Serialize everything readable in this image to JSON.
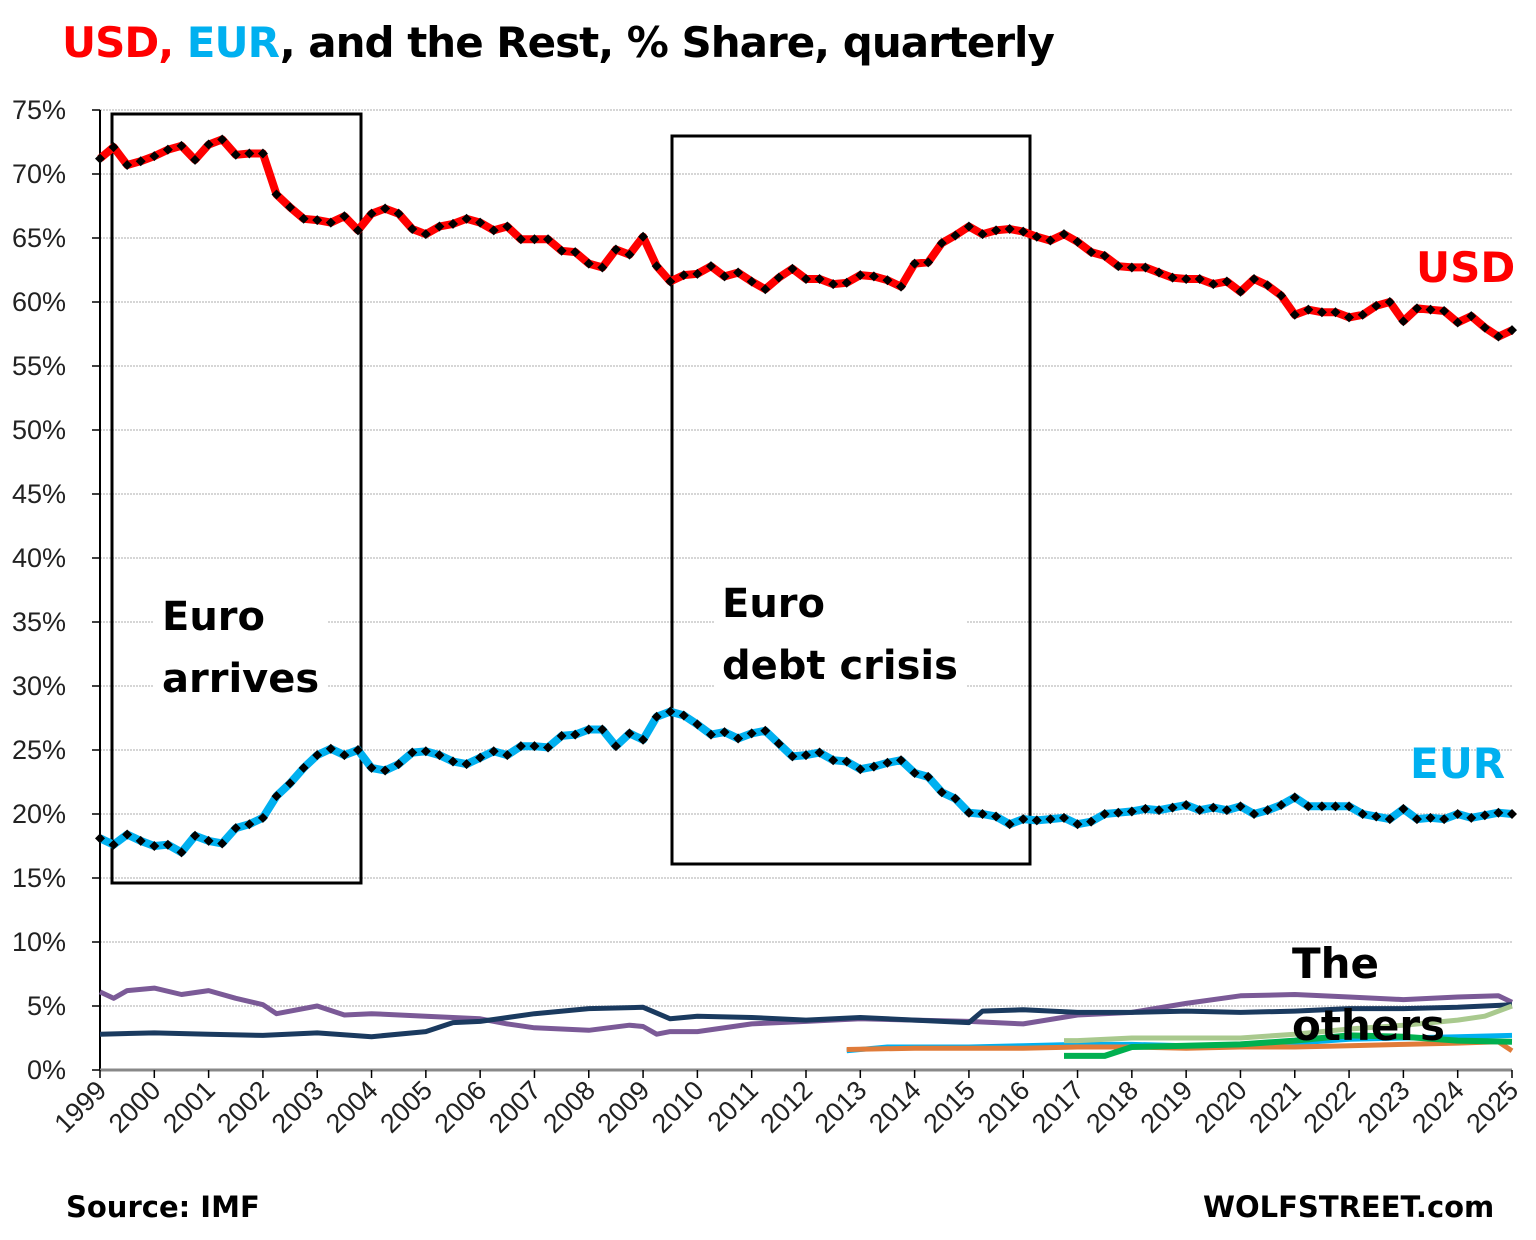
{
  "title": {
    "part_usd": "USD",
    "sep1": ", ",
    "part_eur": "EUR",
    "rest": ", and the Rest, % Share, quarterly"
  },
  "colors": {
    "usd": "#ff0000",
    "eur": "#00b0f0",
    "markers": "#000000",
    "grid": "#c8c8c8"
  },
  "chart_data": {
    "type": "line",
    "title": "USD, EUR, and the Rest, % Share, quarterly",
    "ylabel": "",
    "xlabel": "",
    "ylim": [
      0,
      75
    ],
    "xlim": [
      1999,
      2025
    ],
    "yticks": [
      "0%",
      "5%",
      "10%",
      "15%",
      "20%",
      "25%",
      "30%",
      "35%",
      "40%",
      "45%",
      "50%",
      "55%",
      "60%",
      "65%",
      "70%",
      "75%"
    ],
    "xticks": [
      "1999",
      "2000",
      "2001",
      "2002",
      "2003",
      "2004",
      "2005",
      "2006",
      "2007",
      "2008",
      "2009",
      "2010",
      "2011",
      "2012",
      "2013",
      "2014",
      "2015",
      "2016",
      "2017",
      "2018",
      "2019",
      "2020",
      "2021",
      "2022",
      "2023",
      "2024",
      "2025"
    ],
    "grid": true,
    "series": [
      {
        "name": "USD",
        "color": "#ff0000",
        "start": "1999Q1",
        "frequency": "quarterly",
        "values": [
          71.2,
          72.1,
          70.7,
          71.0,
          71.4,
          71.9,
          72.2,
          71.1,
          72.3,
          72.7,
          71.5,
          71.6,
          71.6,
          68.4,
          67.4,
          66.5,
          66.4,
          66.2,
          66.7,
          65.6,
          66.9,
          67.3,
          66.9,
          65.7,
          65.3,
          65.9,
          66.1,
          66.5,
          66.2,
          65.6,
          65.9,
          64.9,
          64.9,
          64.9,
          64.0,
          63.9,
          63.0,
          62.7,
          64.1,
          63.7,
          65.1,
          62.8,
          61.6,
          62.1,
          62.2,
          62.8,
          62.0,
          62.3,
          61.6,
          61.0,
          61.9,
          62.6,
          61.8,
          61.8,
          61.4,
          61.5,
          62.1,
          62.0,
          61.7,
          61.2,
          63.0,
          63.1,
          64.6,
          65.2,
          65.9,
          65.3,
          65.6,
          65.7,
          65.5,
          65.1,
          64.8,
          65.3,
          64.7,
          63.9,
          63.6,
          62.8,
          62.7,
          62.7,
          62.3,
          61.9,
          61.8,
          61.8,
          61.4,
          61.6,
          60.8,
          61.8,
          61.3,
          60.5,
          59.0,
          59.4,
          59.2,
          59.2,
          58.8,
          59.0,
          59.7,
          60.0,
          58.5,
          59.5,
          59.4,
          59.3,
          58.4,
          58.9,
          58.0,
          57.3,
          57.8
        ]
      },
      {
        "name": "EUR",
        "color": "#00b0f0",
        "start": "1999Q1",
        "frequency": "quarterly",
        "values": [
          18.1,
          17.6,
          18.4,
          17.9,
          17.5,
          17.6,
          17.0,
          18.3,
          17.9,
          17.7,
          18.9,
          19.2,
          19.7,
          21.4,
          22.4,
          23.6,
          24.6,
          25.1,
          24.6,
          25.0,
          23.6,
          23.4,
          23.9,
          24.8,
          24.9,
          24.6,
          24.1,
          23.9,
          24.4,
          24.9,
          24.6,
          25.3,
          25.3,
          25.2,
          26.1,
          26.2,
          26.6,
          26.6,
          25.3,
          26.3,
          25.8,
          27.6,
          28.0,
          27.7,
          27.0,
          26.2,
          26.4,
          25.9,
          26.3,
          26.5,
          25.5,
          24.5,
          24.6,
          24.8,
          24.2,
          24.1,
          23.5,
          23.7,
          24.0,
          24.2,
          23.2,
          22.9,
          21.7,
          21.2,
          20.1,
          20.0,
          19.8,
          19.2,
          19.6,
          19.5,
          19.6,
          19.7,
          19.2,
          19.4,
          20.0,
          20.1,
          20.2,
          20.4,
          20.3,
          20.5,
          20.7,
          20.3,
          20.5,
          20.3,
          20.6,
          20.0,
          20.3,
          20.7,
          21.3,
          20.6,
          20.6,
          20.6,
          20.6,
          20.0,
          19.8,
          19.6,
          20.4,
          19.6,
          19.7,
          19.6,
          20.0,
          19.7,
          19.9,
          20.1,
          20.0
        ]
      },
      {
        "color": "#7b5a97",
        "x": [
          1999,
          1999.25,
          1999.5,
          2000,
          2000.5,
          2001,
          2001.5,
          2002,
          2002.25,
          2003,
          2003.5,
          2004,
          2005,
          2006,
          2006.5,
          2007,
          2008,
          2008.75,
          2009,
          2009.25,
          2009.5,
          2010,
          2011,
          2012,
          2013,
          2014,
          2015,
          2016,
          2017,
          2018,
          2019,
          2020,
          2021,
          2022,
          2023,
          2024,
          2024.75,
          2025
        ],
        "values": [
          6.1,
          5.6,
          6.2,
          6.4,
          5.9,
          6.2,
          5.6,
          5.1,
          4.4,
          5.0,
          4.3,
          4.4,
          4.2,
          4.0,
          3.6,
          3.3,
          3.1,
          3.5,
          3.4,
          2.8,
          3.0,
          3.0,
          3.6,
          3.8,
          4.0,
          3.9,
          3.8,
          3.6,
          4.3,
          4.5,
          5.2,
          5.8,
          5.9,
          5.7,
          5.5,
          5.7,
          5.8,
          5.3
        ]
      },
      {
        "color": "#1a3a5f",
        "x": [
          1999,
          2000,
          2001,
          2002,
          2003,
          2004,
          2005,
          2005.5,
          2006,
          2007,
          2008,
          2009,
          2009.5,
          2009.75,
          2010,
          2011,
          2012,
          2013,
          2014,
          2015,
          2015.25,
          2016,
          2017,
          2018,
          2019,
          2020,
          2021,
          2022,
          2023,
          2024,
          2025
        ],
        "values": [
          2.8,
          2.9,
          2.8,
          2.7,
          2.9,
          2.6,
          3.0,
          3.7,
          3.8,
          4.4,
          4.8,
          4.9,
          4.0,
          4.1,
          4.2,
          4.1,
          3.9,
          4.1,
          3.9,
          3.7,
          4.6,
          4.7,
          4.5,
          4.5,
          4.6,
          4.5,
          4.6,
          4.8,
          4.8,
          4.9,
          5.1
        ]
      },
      {
        "color": "#00b0f0",
        "x": [
          2012.75,
          2013.5,
          2014,
          2015,
          2016,
          2017,
          2018,
          2019,
          2020,
          2021,
          2022,
          2023,
          2024,
          2025
        ],
        "values": [
          1.5,
          1.8,
          1.8,
          1.8,
          1.9,
          2.0,
          2.0,
          1.9,
          1.9,
          2.1,
          2.4,
          2.5,
          2.6,
          2.7
        ]
      },
      {
        "color": "#e07b39",
        "x": [
          2012.75,
          2014,
          2015,
          2016,
          2017,
          2018,
          2019,
          2020,
          2021,
          2022,
          2023,
          2024,
          2024.75,
          2025
        ],
        "values": [
          1.6,
          1.7,
          1.7,
          1.7,
          1.8,
          1.8,
          1.7,
          1.8,
          1.8,
          1.9,
          2.0,
          2.1,
          2.2,
          1.5
        ]
      },
      {
        "color": "#a9c98e",
        "x": [
          2016.75,
          2017,
          2018,
          2019,
          2020,
          2021,
          2022,
          2023,
          2024,
          2024.5,
          2025
        ],
        "values": [
          2.3,
          2.3,
          2.5,
          2.5,
          2.5,
          2.8,
          3.2,
          3.5,
          3.9,
          4.2,
          5.0
        ]
      },
      {
        "color": "#00b050",
        "x": [
          2016.75,
          2017.5,
          2018,
          2019,
          2020,
          2021,
          2022,
          2023,
          2024,
          2025
        ],
        "values": [
          1.1,
          1.1,
          1.8,
          1.9,
          2.0,
          2.3,
          2.7,
          2.6,
          2.3,
          2.2
        ]
      }
    ],
    "annotations": {
      "usd_label": "USD",
      "eur_label": "EUR",
      "others_label": "The others",
      "box1_line1": "Euro",
      "box1_line2": "arrives",
      "box2_line1": "Euro",
      "box2_line2": "debt crisis"
    }
  },
  "footer": {
    "source": "Source: IMF",
    "brand": "WOLFSTREET.com"
  }
}
